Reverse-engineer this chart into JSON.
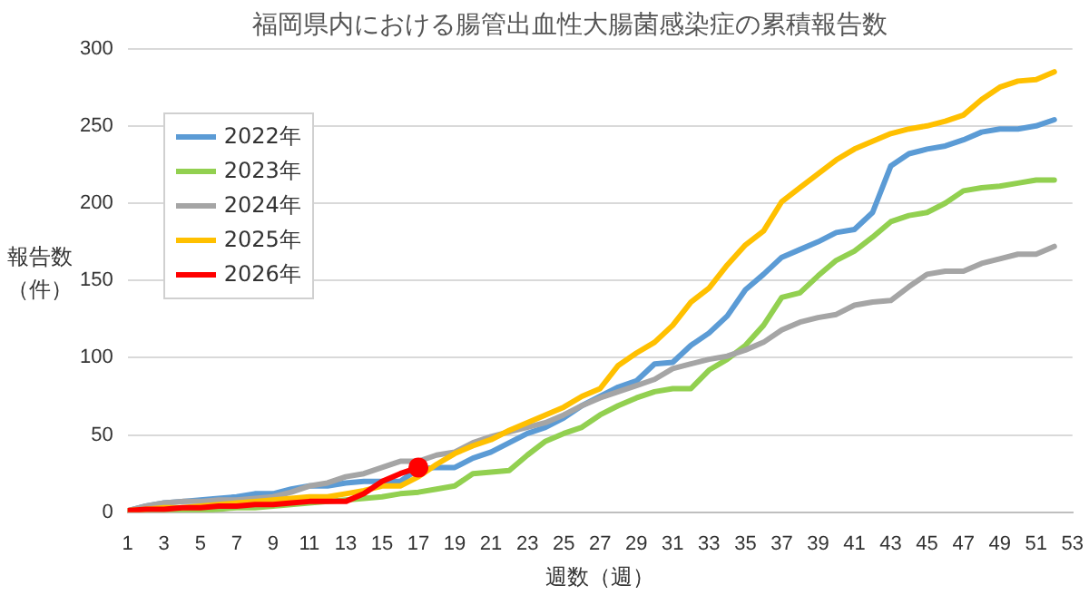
{
  "chart_data": {
    "type": "line",
    "title": "福岡県内における腸管出血性大腸菌感染症の累積報告数",
    "xlabel": "週数（週）",
    "ylabel": "報告数（件）",
    "x": [
      1,
      2,
      3,
      4,
      5,
      6,
      7,
      8,
      9,
      10,
      11,
      12,
      13,
      14,
      15,
      16,
      17,
      18,
      19,
      20,
      21,
      22,
      23,
      24,
      25,
      26,
      27,
      28,
      29,
      30,
      31,
      32,
      33,
      34,
      35,
      36,
      37,
      38,
      39,
      40,
      41,
      42,
      43,
      44,
      45,
      46,
      47,
      48,
      49,
      50,
      51,
      52
    ],
    "xlim": [
      1,
      53
    ],
    "xticks": [
      1,
      3,
      5,
      7,
      9,
      11,
      13,
      15,
      17,
      19,
      21,
      23,
      25,
      27,
      29,
      31,
      33,
      35,
      37,
      39,
      41,
      43,
      45,
      47,
      49,
      51,
      53
    ],
    "ylim": [
      0,
      300
    ],
    "yticks": [
      0,
      50,
      100,
      150,
      200,
      250,
      300
    ],
    "grid": "y",
    "legend": "top left",
    "marker": "none",
    "line_style": "solid",
    "series": [
      {
        "name": "2022年",
        "color": "#5b9bd5",
        "values": [
          1,
          4,
          6,
          7,
          8,
          9,
          10,
          12,
          12,
          15,
          17,
          17,
          19,
          20,
          20,
          20,
          28,
          29,
          29,
          35,
          39,
          45,
          51,
          55,
          61,
          69,
          75,
          81,
          85,
          96,
          97,
          108,
          116,
          127,
          144,
          154,
          165,
          170,
          175,
          181,
          183,
          194,
          224,
          232,
          235,
          237,
          241,
          246,
          248,
          248,
          250,
          254
        ]
      },
      {
        "name": "2023年",
        "color": "#92d050",
        "values": [
          0,
          0,
          1,
          1,
          1,
          2,
          3,
          3,
          4,
          5,
          6,
          7,
          8,
          9,
          10,
          12,
          13,
          15,
          17,
          25,
          26,
          27,
          37,
          46,
          51,
          55,
          63,
          69,
          74,
          78,
          80,
          80,
          92,
          99,
          108,
          121,
          139,
          142,
          153,
          163,
          169,
          178,
          188,
          192,
          194,
          200,
          208,
          210,
          211,
          213,
          215,
          215
        ]
      },
      {
        "name": "2024年",
        "color": "#a5a5a5",
        "values": [
          1,
          4,
          6,
          7,
          7,
          8,
          8,
          9,
          10,
          13,
          17,
          19,
          23,
          25,
          29,
          33,
          33,
          37,
          39,
          45,
          49,
          52,
          55,
          58,
          63,
          69,
          74,
          78,
          82,
          86,
          93,
          96,
          99,
          101,
          105,
          110,
          118,
          123,
          126,
          128,
          134,
          136,
          137,
          146,
          154,
          156,
          156,
          161,
          164,
          167,
          167,
          172
        ]
      },
      {
        "name": "2025年",
        "color": "#ffc000",
        "values": [
          1,
          2,
          3,
          3,
          4,
          5,
          6,
          7,
          8,
          9,
          10,
          10,
          12,
          14,
          17,
          17,
          23,
          31,
          38,
          43,
          47,
          53,
          58,
          63,
          68,
          75,
          80,
          95,
          103,
          110,
          121,
          136,
          145,
          160,
          173,
          182,
          201,
          210,
          219,
          228,
          235,
          240,
          245,
          248,
          250,
          253,
          257,
          267,
          275,
          279,
          280,
          285
        ]
      },
      {
        "name": "2026年",
        "color": "#ff0000",
        "values": [
          1,
          2,
          2,
          3,
          3,
          4,
          4,
          5,
          5,
          6,
          7,
          7,
          7,
          12,
          20,
          25,
          29,
          null,
          null,
          null,
          null,
          null,
          null,
          null,
          null,
          null,
          null,
          null,
          null,
          null,
          null,
          null,
          null,
          null,
          null,
          null,
          null,
          null,
          null,
          null,
          null,
          null,
          null,
          null,
          null,
          null,
          null,
          null,
          null,
          null,
          null,
          null
        ]
      },
      {
        "type": "scatter",
        "color": "#ff0000",
        "marker": "circle",
        "x": [
          17
        ],
        "values": [
          29
        ]
      }
    ]
  }
}
